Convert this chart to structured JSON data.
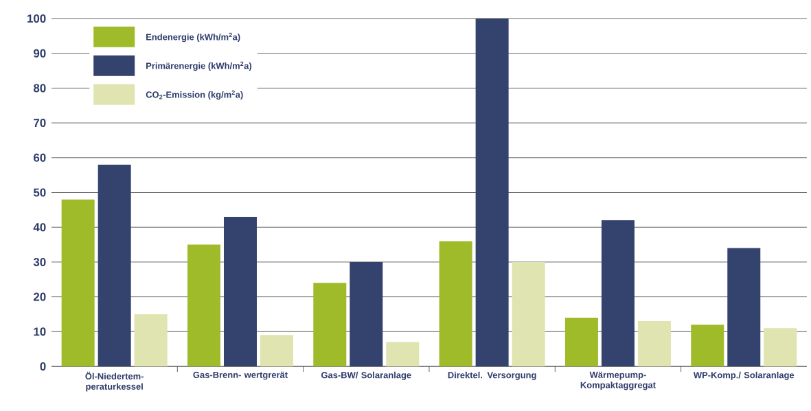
{
  "chart_data": {
    "type": "bar",
    "categories": [
      "Öl-Niedertem- peraturkessel",
      "Gas-Brenn- wertgrerät",
      "Gas-BW/ Solaranlage",
      "Direktel. Versorgung",
      "Wärmepump- Kompaktaggregat",
      "WP-Komp./ Solaranlage"
    ],
    "series": [
      {
        "name": "Endenergie (kWh/m$^{2}$a)",
        "color": "#9fbb2a",
        "values": [
          48,
          35,
          24,
          36,
          14,
          12
        ]
      },
      {
        "name": "Primärenergie (kWh/m$^{2}$a)",
        "color": "#34426e",
        "values": [
          58,
          43,
          30,
          100,
          42,
          34
        ]
      },
      {
        "name": "CO$_{2}$-Emission (kg/m$^{2}$a)",
        "color": "#dfe4b0",
        "values": [
          15,
          9,
          7,
          30,
          13,
          11
        ]
      }
    ],
    "ylim": [
      0,
      100
    ],
    "yticks": [
      0,
      10,
      20,
      30,
      40,
      50,
      60,
      70,
      80,
      90,
      100
    ],
    "grid": "y",
    "legend": "top left"
  }
}
